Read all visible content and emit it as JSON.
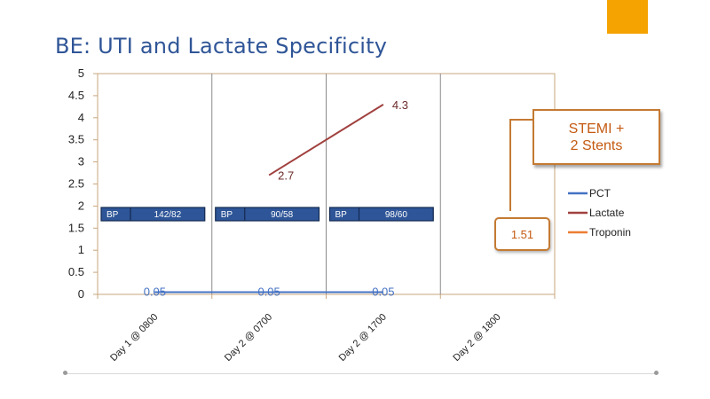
{
  "slide": {
    "title": "BE: UTI and Lactate Specificity",
    "accent_color": "#f5a300"
  },
  "chart_data": {
    "type": "line",
    "title": "",
    "categories": [
      "Day 1 @ 0800",
      "Day 2 @ 0700",
      "Day 2 @ 1700",
      "Day 2 @ 1800"
    ],
    "ylim": [
      0,
      5
    ],
    "yticks": [
      "0",
      "0.5",
      "1",
      "1.5",
      "2",
      "2.5",
      "3",
      "3.5",
      "4",
      "4.5",
      "5"
    ],
    "grid": true,
    "legend_position": "right",
    "series": [
      {
        "name": "PCT",
        "color": "#4472c4",
        "values": [
          0.05,
          0.05,
          0.05,
          null
        ],
        "labels": [
          "0.05",
          "0.05",
          "0.05",
          null
        ]
      },
      {
        "name": "Lactate",
        "color": "#a0413f",
        "values": [
          null,
          2.7,
          4.3,
          null
        ],
        "labels": [
          null,
          "2.7",
          "4.3",
          null
        ]
      },
      {
        "name": "Troponin",
        "color": "#ed7d31",
        "values": [
          null,
          null,
          null,
          1.51
        ],
        "labels": [
          null,
          null,
          null,
          "1.51"
        ]
      }
    ],
    "annotations": {
      "bp_readings": [
        {
          "label": "BP",
          "value": "142/82"
        },
        {
          "label": "BP",
          "value": "90/58"
        },
        {
          "label": "BP",
          "value": "98/60"
        }
      ],
      "callout_lines": [
        "STEMI +",
        "2 Stents"
      ],
      "troponin_label": "1.51"
    }
  }
}
